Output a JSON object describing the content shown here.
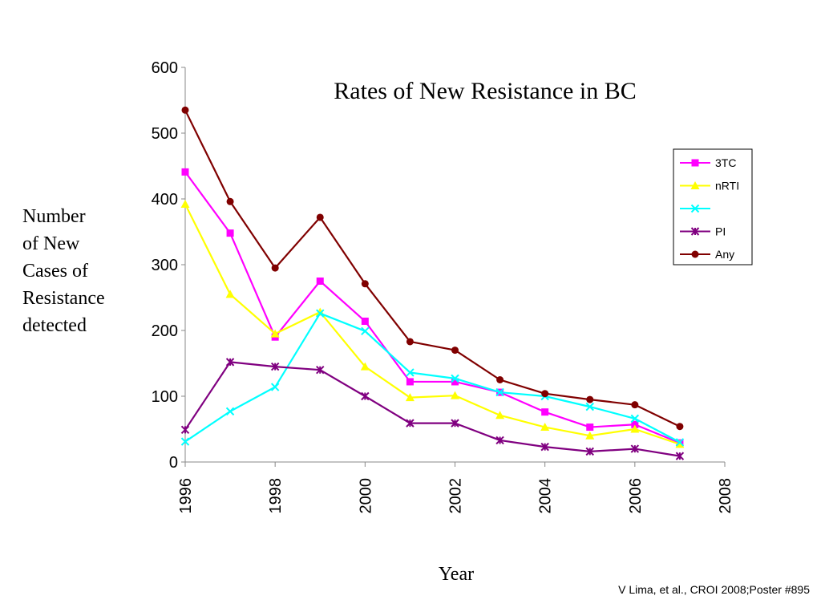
{
  "chart_data": {
    "type": "line",
    "title": "Rates of New Resistance  in BC",
    "xlabel": "Year",
    "ylabel_lines": [
      "Number",
      "of  New",
      "Cases of",
      "Resistance",
      "detected"
    ],
    "xlim": [
      1996,
      2008
    ],
    "ylim": [
      0,
      600
    ],
    "x_ticks": [
      "1996",
      "1998",
      "2000",
      "2002",
      "2004",
      "2006",
      "2008"
    ],
    "y_ticks": [
      "0",
      "100",
      "200",
      "300",
      "400",
      "500",
      "600"
    ],
    "x": [
      1996,
      1997,
      1998,
      1999,
      2000,
      2001,
      2002,
      2003,
      2004,
      2005,
      2006,
      2007
    ],
    "grid": false,
    "legend_position": "right",
    "series": [
      {
        "name": "3TC",
        "color": "#ff00ff",
        "marker": "square",
        "values": [
          441,
          348,
          190,
          275,
          214,
          122,
          122,
          106,
          76,
          53,
          57,
          29
        ]
      },
      {
        "name": "nRTI",
        "color": "#ffff00",
        "marker": "triangle",
        "values": [
          392,
          255,
          195,
          228,
          145,
          98,
          101,
          71,
          53,
          40,
          50,
          27
        ]
      },
      {
        "name": "",
        "color": "#00ffff",
        "marker": "x",
        "values": [
          31,
          77,
          114,
          226,
          199,
          136,
          127,
          106,
          100,
          84,
          66,
          30
        ]
      },
      {
        "name": "PI",
        "color": "#800080",
        "marker": "star",
        "values": [
          49,
          152,
          145,
          140,
          100,
          59,
          59,
          33,
          23,
          16,
          20,
          9
        ]
      },
      {
        "name": "Any",
        "color": "#800000",
        "marker": "circle",
        "values": [
          535,
          396,
          295,
          372,
          271,
          183,
          170,
          125,
          104,
          95,
          87,
          54
        ]
      }
    ]
  },
  "footer": {
    "credit": "V Lima, et al., CROI 2008;Poster #895"
  }
}
